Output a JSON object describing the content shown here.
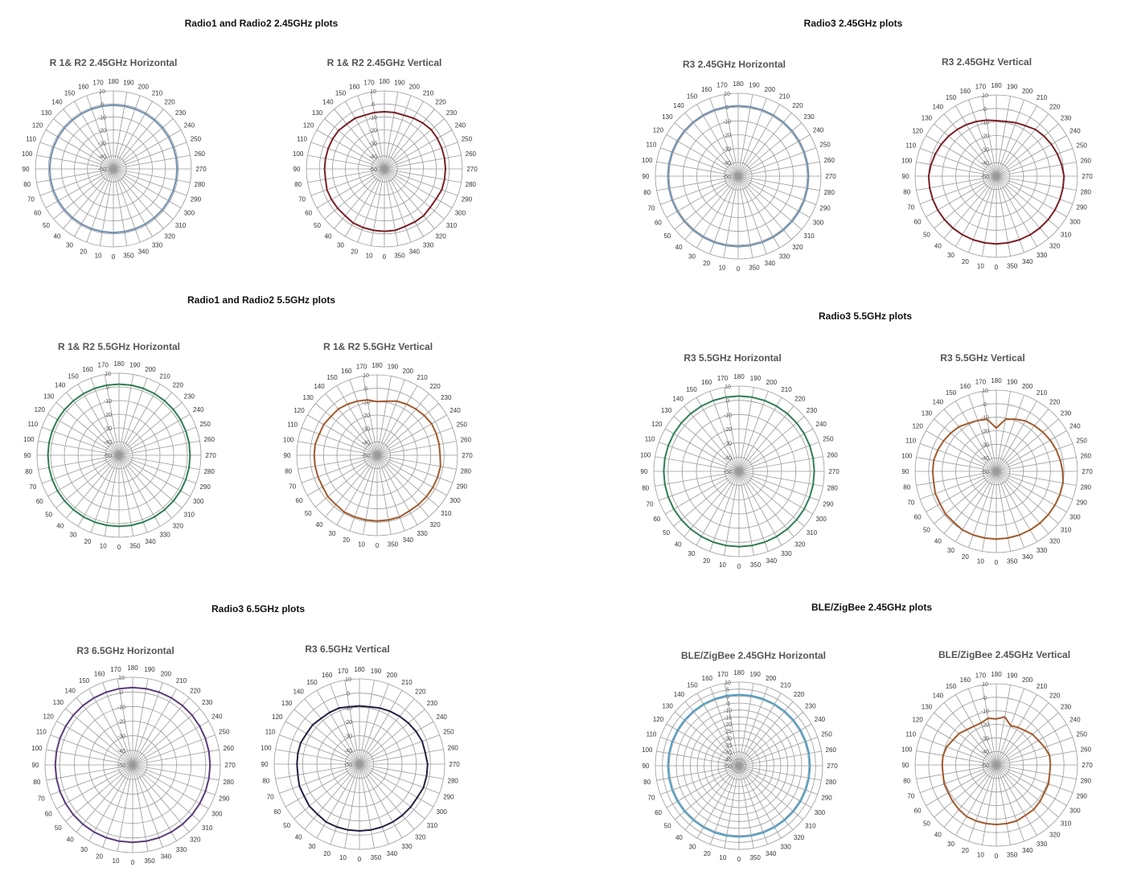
{
  "sections": [
    {
      "title": "Radio1 and Radio2 2.45GHz plots"
    },
    {
      "title": "Radio3 2.45GHz plots"
    },
    {
      "title": "Radio1 and Radio2 5.5GHz plots"
    },
    {
      "title": "Radio3 5.5GHz plots"
    },
    {
      "title": "Radio3 6.5GHz plots"
    },
    {
      "title": "BLE/ZigBee 2.45GHz plots"
    }
  ],
  "chart_data": [
    {
      "type": "polar-line",
      "title": "R 1& R2 2.45GHz Horizontal",
      "color": "#6f8fb0",
      "angles_deg": [
        0,
        10,
        20,
        30,
        40,
        50,
        60,
        70,
        80,
        90,
        100,
        110,
        120,
        130,
        140,
        150,
        160,
        170,
        180,
        190,
        200,
        210,
        220,
        230,
        240,
        250,
        260,
        270,
        280,
        290,
        300,
        310,
        320,
        330,
        340,
        350
      ],
      "radial_ticks": [
        10,
        0,
        -10,
        -20,
        -30,
        -40,
        -50
      ],
      "rlim": [
        -50,
        10
      ],
      "values": [
        -1,
        -1,
        -1,
        -1,
        -1,
        -1,
        -1,
        -1,
        -1,
        -1,
        -1,
        -1,
        -1,
        -1,
        -1,
        -1,
        -1,
        -1,
        -1,
        -1,
        -1,
        -1,
        -1,
        -1,
        -1,
        -1,
        -1,
        -1,
        -1,
        -1,
        -1,
        -1,
        -1,
        -1,
        -1,
        -1
      ]
    },
    {
      "type": "polar-line",
      "title": "R 1& R2 2.45GHz Vertical",
      "color": "#7b1f24",
      "angles_deg": [
        0,
        10,
        20,
        30,
        40,
        50,
        60,
        70,
        80,
        90,
        100,
        110,
        120,
        130,
        140,
        150,
        160,
        170,
        180,
        190,
        200,
        210,
        220,
        230,
        240,
        250,
        260,
        270,
        280,
        290,
        300,
        310,
        320,
        330,
        340,
        350
      ],
      "radial_ticks": [
        10,
        0,
        -10,
        -20,
        -30,
        -40,
        -50
      ],
      "rlim": [
        -50,
        10
      ],
      "values": [
        -2,
        -2,
        -2,
        -2,
        -3,
        -3,
        -3,
        -3,
        -4,
        -4,
        -4,
        -4,
        -4,
        -4,
        -5,
        -5,
        -6,
        -6,
        -6,
        -6,
        -6,
        -5,
        -4,
        -3,
        -3,
        -3,
        -3,
        -3,
        -3,
        -3,
        -4,
        -4,
        -3,
        -3,
        -3,
        -2
      ]
    },
    {
      "type": "polar-line",
      "title": "R3 2.45GHz Horizontal",
      "color": "#6f8fb0",
      "angles_deg": [
        0,
        10,
        20,
        30,
        40,
        50,
        60,
        70,
        80,
        90,
        100,
        110,
        120,
        130,
        140,
        150,
        160,
        170,
        180,
        190,
        200,
        210,
        220,
        230,
        240,
        250,
        260,
        270,
        280,
        290,
        300,
        310,
        320,
        330,
        340,
        350
      ],
      "radial_ticks": [
        10,
        0,
        -10,
        -20,
        -30,
        -40,
        -50
      ],
      "rlim": [
        -50,
        10
      ],
      "values": [
        1,
        1,
        1,
        1,
        1,
        1,
        1,
        1,
        1,
        1,
        1,
        1,
        1,
        1,
        1,
        1,
        1,
        1,
        1,
        1,
        1,
        1,
        1,
        1,
        1,
        1,
        1,
        1,
        1,
        1,
        1,
        1,
        1,
        1,
        1,
        1
      ]
    },
    {
      "type": "polar-line",
      "title": "R3 2.45GHz Vertical",
      "color": "#7b1f24",
      "angles_deg": [
        0,
        10,
        20,
        30,
        40,
        50,
        60,
        70,
        80,
        90,
        100,
        110,
        120,
        130,
        140,
        150,
        160,
        170,
        180,
        190,
        200,
        210,
        220,
        230,
        240,
        250,
        260,
        270,
        280,
        290,
        300,
        310,
        320,
        330,
        340,
        350
      ],
      "radial_ticks": [
        10,
        0,
        -10,
        -20,
        -30,
        -40,
        -50
      ],
      "rlim": [
        -50,
        10
      ],
      "values": [
        0,
        0,
        0,
        0,
        0,
        0,
        0,
        0,
        0,
        0,
        -1,
        -2,
        -3,
        -4,
        -5,
        -6,
        -7,
        -8,
        -9,
        -9,
        -8,
        -7,
        -5,
        -4,
        -3,
        -2,
        -1,
        0,
        0,
        0,
        0,
        0,
        0,
        0,
        0,
        0
      ]
    },
    {
      "type": "polar-line",
      "title": "R 1& R2 5.5GHz Horizontal",
      "color": "#2e7d52",
      "angles_deg": [
        0,
        10,
        20,
        30,
        40,
        50,
        60,
        70,
        80,
        90,
        100,
        110,
        120,
        130,
        140,
        150,
        160,
        170,
        180,
        190,
        200,
        210,
        220,
        230,
        240,
        250,
        260,
        270,
        280,
        290,
        300,
        310,
        320,
        330,
        340,
        350
      ],
      "radial_ticks": [
        10,
        0,
        -10,
        -20,
        -30,
        -40,
        -50
      ],
      "rlim": [
        -50,
        10
      ],
      "values": [
        2,
        2,
        2,
        2,
        2,
        2,
        2,
        2,
        2,
        2,
        2,
        2,
        2,
        2,
        2,
        2,
        2,
        2,
        2,
        2,
        2,
        2,
        2,
        2,
        2,
        2,
        2,
        2,
        2,
        2,
        2,
        2,
        2,
        2,
        2,
        2
      ]
    },
    {
      "type": "polar-line",
      "title": "R 1& R2 5.5GHz Vertical",
      "color": "#a05a2c",
      "angles_deg": [
        0,
        10,
        20,
        30,
        40,
        50,
        60,
        70,
        80,
        90,
        100,
        110,
        120,
        130,
        140,
        150,
        160,
        170,
        180,
        190,
        200,
        210,
        220,
        230,
        240,
        250,
        260,
        270,
        280,
        290,
        300,
        310,
        320,
        330,
        340,
        350
      ],
      "radial_ticks": [
        10,
        0,
        -10,
        -20,
        -30,
        -40,
        -50
      ],
      "rlim": [
        -50,
        10
      ],
      "values": [
        -1,
        -1,
        -1,
        -1,
        -2,
        -2,
        -3,
        -3,
        -3,
        -3,
        -3,
        -4,
        -4,
        -5,
        -5,
        -6,
        -7,
        -8,
        -10,
        -9,
        -7,
        -6,
        -5,
        -4,
        -3,
        -3,
        -3,
        -3,
        -2,
        -2,
        -2,
        -2,
        -2,
        -2,
        -1,
        -1
      ]
    },
    {
      "type": "polar-line",
      "title": "R3 5.5GHz Horizontal",
      "color": "#2e7d52",
      "angles_deg": [
        0,
        10,
        20,
        30,
        40,
        50,
        60,
        70,
        80,
        90,
        100,
        110,
        120,
        130,
        140,
        150,
        160,
        170,
        180,
        190,
        200,
        210,
        220,
        230,
        240,
        250,
        260,
        270,
        280,
        290,
        300,
        310,
        320,
        330,
        340,
        350
      ],
      "radial_ticks": [
        10,
        0,
        -10,
        -20,
        -30,
        -40,
        -50
      ],
      "rlim": [
        -50,
        10
      ],
      "values": [
        3,
        3,
        3,
        3,
        3,
        3,
        3,
        3,
        3,
        3,
        3,
        3,
        3,
        3,
        3,
        3,
        3,
        3,
        3,
        3,
        3,
        3,
        3,
        3,
        3,
        3,
        3,
        3,
        3,
        3,
        3,
        3,
        3,
        3,
        3,
        3
      ]
    },
    {
      "type": "polar-line",
      "title": "R3 5.5GHz Vertical",
      "color": "#a05a2c",
      "angles_deg": [
        0,
        10,
        20,
        30,
        40,
        50,
        60,
        70,
        80,
        90,
        100,
        110,
        120,
        130,
        140,
        150,
        160,
        170,
        180,
        190,
        200,
        210,
        220,
        230,
        240,
        250,
        260,
        270,
        280,
        290,
        300,
        310,
        320,
        330,
        340,
        350
      ],
      "radial_ticks": [
        10,
        0,
        -10,
        -20,
        -30,
        -40,
        -50
      ],
      "rlim": [
        -50,
        10
      ],
      "values": [
        0,
        0,
        0,
        0,
        -1,
        -1,
        -2,
        -2,
        -3,
        -3,
        -3,
        -4,
        -5,
        -6,
        -7,
        -9,
        -10,
        -11,
        -18,
        -11,
        -9,
        -7,
        -6,
        -5,
        -4,
        -3,
        -2,
        -1,
        0,
        0,
        0,
        0,
        0,
        0,
        0,
        0
      ]
    },
    {
      "type": "polar-line",
      "title": "R3 6.5GHz Horizontal",
      "color": "#5b3a7a",
      "angles_deg": [
        0,
        10,
        20,
        30,
        40,
        50,
        60,
        70,
        80,
        90,
        100,
        110,
        120,
        130,
        140,
        150,
        160,
        170,
        180,
        190,
        200,
        210,
        220,
        230,
        240,
        250,
        260,
        270,
        280,
        290,
        300,
        310,
        320,
        330,
        340,
        350
      ],
      "radial_ticks": [
        10,
        0,
        -10,
        -20,
        -30,
        -40,
        -50
      ],
      "rlim": [
        -50,
        10
      ],
      "values": [
        3,
        3,
        3,
        3,
        3,
        3,
        3,
        3,
        3,
        3,
        3,
        3,
        3,
        3,
        3,
        3,
        3,
        3,
        3,
        3,
        3,
        3,
        3,
        3,
        3,
        3,
        3,
        3,
        3,
        3,
        3,
        3,
        3,
        3,
        3,
        3
      ]
    },
    {
      "type": "polar-line",
      "title": "R3 6.5GHz Vertical",
      "color": "#1e2140",
      "angles_deg": [
        0,
        10,
        20,
        30,
        40,
        50,
        60,
        70,
        80,
        90,
        100,
        110,
        120,
        130,
        140,
        150,
        160,
        170,
        180,
        190,
        200,
        210,
        220,
        230,
        240,
        250,
        260,
        270,
        280,
        290,
        300,
        310,
        320,
        330,
        340,
        350
      ],
      "radial_ticks": [
        10,
        0,
        -10,
        -20,
        -30,
        -40,
        -50
      ],
      "rlim": [
        -50,
        10
      ],
      "values": [
        -3,
        -3,
        -3,
        -3,
        -4,
        -4,
        -5,
        -5,
        -6,
        -6,
        -6,
        -6,
        -7,
        -7,
        -8,
        -8,
        -8,
        -9,
        -9,
        -9,
        -8,
        -7,
        -6,
        -5,
        -4,
        -3,
        -3,
        -2,
        -2,
        -2,
        -3,
        -3,
        -3,
        -3,
        -3,
        -3
      ]
    },
    {
      "type": "polar-line",
      "title": "BLE/ZigBee 2.45GHz Horizontal",
      "color": "#4a9cc4",
      "angles_deg": [
        0,
        10,
        20,
        30,
        40,
        50,
        60,
        70,
        80,
        90,
        100,
        110,
        120,
        130,
        140,
        150,
        160,
        170,
        180,
        190,
        200,
        210,
        220,
        230,
        240,
        250,
        260,
        270,
        280,
        290,
        300,
        310,
        320,
        330,
        340,
        350
      ],
      "radial_ticks": [
        10,
        5,
        0,
        -5,
        -10,
        -15,
        -20,
        -25,
        -30,
        -35,
        -40,
        -45,
        -50
      ],
      "rlim": [
        -50,
        10
      ],
      "values": [
        1,
        1,
        1,
        1,
        1,
        1,
        1,
        1,
        1,
        1,
        1,
        1,
        1,
        1,
        1,
        1,
        1,
        1,
        1,
        1,
        1,
        1,
        1,
        1,
        1,
        1,
        1,
        1,
        1,
        1,
        1,
        1,
        1,
        1,
        1,
        1
      ]
    },
    {
      "type": "polar-line",
      "title": "BLE/ZigBee 2.45GHz Vertical",
      "color": "#a05a2c",
      "angles_deg": [
        0,
        10,
        20,
        30,
        40,
        50,
        60,
        70,
        80,
        90,
        100,
        110,
        120,
        130,
        140,
        150,
        160,
        170,
        180,
        190,
        200,
        210,
        220,
        230,
        240,
        250,
        260,
        270,
        280,
        290,
        300,
        310,
        320,
        330,
        340,
        350
      ],
      "radial_ticks": [
        10,
        0,
        -10,
        -20,
        -30,
        -40,
        -50
      ],
      "rlim": [
        -50,
        10
      ],
      "values": [
        -6,
        -6,
        -6,
        -6,
        -7,
        -8,
        -9,
        -9,
        -10,
        -10,
        -10,
        -11,
        -13,
        -14,
        -16,
        -17,
        -17,
        -15,
        -16,
        -14,
        -19,
        -18,
        -17,
        -15,
        -14,
        -12,
        -10,
        -10,
        -10,
        -9,
        -9,
        -8,
        -7,
        -7,
        -6,
        -6
      ]
    }
  ]
}
